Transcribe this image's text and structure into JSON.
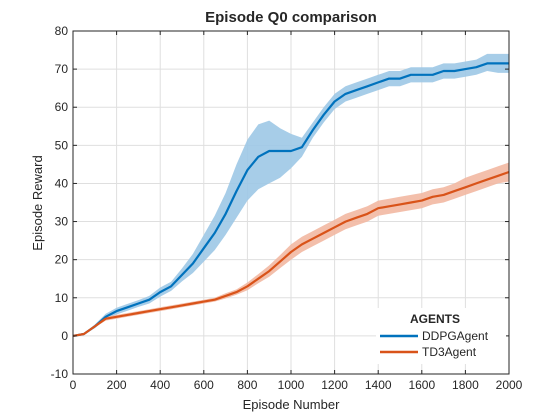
{
  "chart_data": {
    "type": "line",
    "title": "Episode Q0 comparison",
    "xlabel": "Episode Number",
    "ylabel": "Episode Reward",
    "xlim": [
      0,
      2000
    ],
    "ylim": [
      -10,
      80
    ],
    "xticks": [
      0,
      200,
      400,
      600,
      800,
      1000,
      1200,
      1400,
      1600,
      1800,
      2000
    ],
    "yticks": [
      -10,
      0,
      10,
      20,
      30,
      40,
      50,
      60,
      70,
      80
    ],
    "grid": true,
    "legend": {
      "title": "AGENTS",
      "position": "bottom-right"
    },
    "x": [
      0,
      50,
      100,
      150,
      200,
      250,
      300,
      350,
      400,
      450,
      500,
      550,
      600,
      650,
      700,
      750,
      800,
      850,
      900,
      950,
      1000,
      1050,
      1100,
      1150,
      1200,
      1250,
      1300,
      1350,
      1400,
      1450,
      1500,
      1550,
      1600,
      1650,
      1700,
      1750,
      1800,
      1850,
      1900,
      1950,
      2000
    ],
    "series": [
      {
        "name": "DDPGAgent",
        "color": "#0072BD",
        "band_color": "#9DC8E6",
        "values": [
          0,
          0.5,
          2.5,
          5,
          6.5,
          7.5,
          8.5,
          9.5,
          11.5,
          13,
          16,
          19,
          23,
          27,
          32,
          38,
          43.5,
          47,
          48.5,
          48.5,
          48.5,
          49.5,
          54,
          58,
          61.5,
          63.5,
          64.5,
          65.5,
          66.5,
          67.5,
          67.5,
          68.5,
          68.5,
          68.5,
          69.5,
          69.5,
          70,
          70.5,
          71.5,
          71.5,
          71.5
        ],
        "lower": [
          0,
          0.3,
          2,
          4.3,
          5.6,
          6.6,
          7.6,
          8.5,
          10.3,
          11.8,
          14.3,
          16.5,
          19.5,
          22.5,
          26.5,
          31,
          35.5,
          38.5,
          40,
          41.5,
          44,
          47,
          52,
          56,
          59.5,
          61.5,
          62.5,
          63.5,
          64.5,
          65.5,
          65.5,
          66.5,
          66.5,
          66.5,
          67.5,
          67.5,
          68,
          68.5,
          69.5,
          69,
          69
        ],
        "upper": [
          0,
          0.7,
          3,
          5.8,
          7.4,
          8.4,
          9.4,
          10.5,
          12.7,
          14.2,
          17.7,
          21.5,
          26.5,
          31.5,
          37.5,
          45,
          51.5,
          55.5,
          56.5,
          54.5,
          53,
          52,
          56,
          60,
          63.5,
          65.5,
          66.5,
          67.5,
          68.5,
          69.5,
          69.5,
          70.5,
          70.5,
          70.5,
          71.5,
          71.5,
          72,
          72.5,
          74,
          74,
          74
        ]
      },
      {
        "name": "TD3Agent",
        "color": "#D95319",
        "band_color": "#F2B8A2",
        "values": [
          0,
          0.5,
          2.5,
          4.5,
          5,
          5.5,
          6,
          6.5,
          7,
          7.5,
          8,
          8.5,
          9,
          9.5,
          10.5,
          11.5,
          13,
          15,
          17,
          19.5,
          22,
          24,
          25.5,
          27,
          28.5,
          30,
          31,
          32,
          33.5,
          34,
          34.5,
          35,
          35.5,
          36.5,
          37,
          38,
          39,
          40,
          41,
          42,
          43
        ],
        "lower": [
          0,
          0.4,
          2.2,
          4,
          4.5,
          5,
          5.5,
          6,
          6.5,
          7,
          7.5,
          8,
          8.5,
          9,
          9.8,
          10.8,
          12,
          13.8,
          15.5,
          17.8,
          20,
          22,
          23.5,
          25,
          26.5,
          28,
          29,
          30,
          31.5,
          32,
          32.5,
          33,
          33.5,
          34.5,
          35,
          36,
          37,
          38,
          39,
          40,
          40.5
        ],
        "upper": [
          0,
          0.6,
          2.8,
          5,
          5.5,
          6,
          6.5,
          7,
          7.5,
          8,
          8.5,
          9,
          9.5,
          10,
          11.2,
          12.2,
          14,
          16.2,
          18.5,
          21.2,
          24,
          26,
          27.5,
          29,
          30.5,
          32,
          33,
          34,
          35.5,
          36,
          36.5,
          37,
          37.5,
          38.5,
          39,
          40,
          41.5,
          42.5,
          43.5,
          44.5,
          45.5
        ]
      }
    ]
  }
}
